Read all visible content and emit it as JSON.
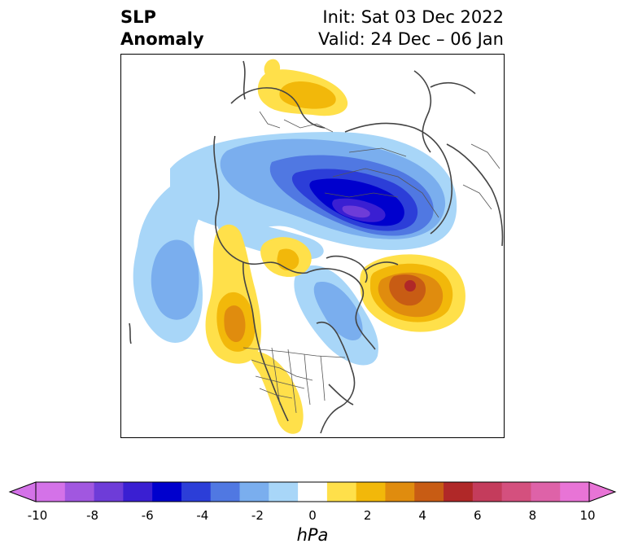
{
  "title": {
    "left_line1": "SLP",
    "left_line2": "Anomaly",
    "right_line1": "Init: Sat 03 Dec 2022",
    "right_line2": "Valid: 24 Dec – 06 Jan"
  },
  "colorbar": {
    "unit": "hPa",
    "min": -10,
    "max": 10,
    "extend": "both",
    "ticks": [
      "-10",
      "-8",
      "-6",
      "-4",
      "-2",
      "0",
      "2",
      "4",
      "6",
      "8",
      "10"
    ],
    "colors": [
      "#d472e8",
      "#a157e0",
      "#6e3cd8",
      "#3a1fd2",
      "#0000cd",
      "#2c3ed8",
      "#5078e2",
      "#7aaeee",
      "#a8d6f8",
      "#ffffff",
      "#ffe04a",
      "#f2b80a",
      "#e08c0e",
      "#c85c14",
      "#b02828",
      "#c43c5c",
      "#d4507e",
      "#de62a8",
      "#e874d6"
    ]
  },
  "map": {
    "projection": "polar-stereographic",
    "field": "sea-level pressure anomaly",
    "features": [
      {
        "name": "Siberia/Arctic low",
        "peak_hpa": -8,
        "sign": "negative"
      },
      {
        "name": "North Pacific low",
        "peak_hpa": -3,
        "sign": "negative"
      },
      {
        "name": "Hudson Bay / eastern Canada low",
        "peak_hpa": -3,
        "sign": "negative"
      },
      {
        "name": "Greenland–Iceland high",
        "peak_hpa": 6,
        "sign": "positive"
      },
      {
        "name": "Alaska / west North America high",
        "peak_hpa": 4,
        "sign": "positive"
      },
      {
        "name": "Scandinavia / Europe high",
        "peak_hpa": 2,
        "sign": "positive"
      },
      {
        "name": "Beaufort Sea high",
        "peak_hpa": 2,
        "sign": "positive"
      }
    ]
  }
}
